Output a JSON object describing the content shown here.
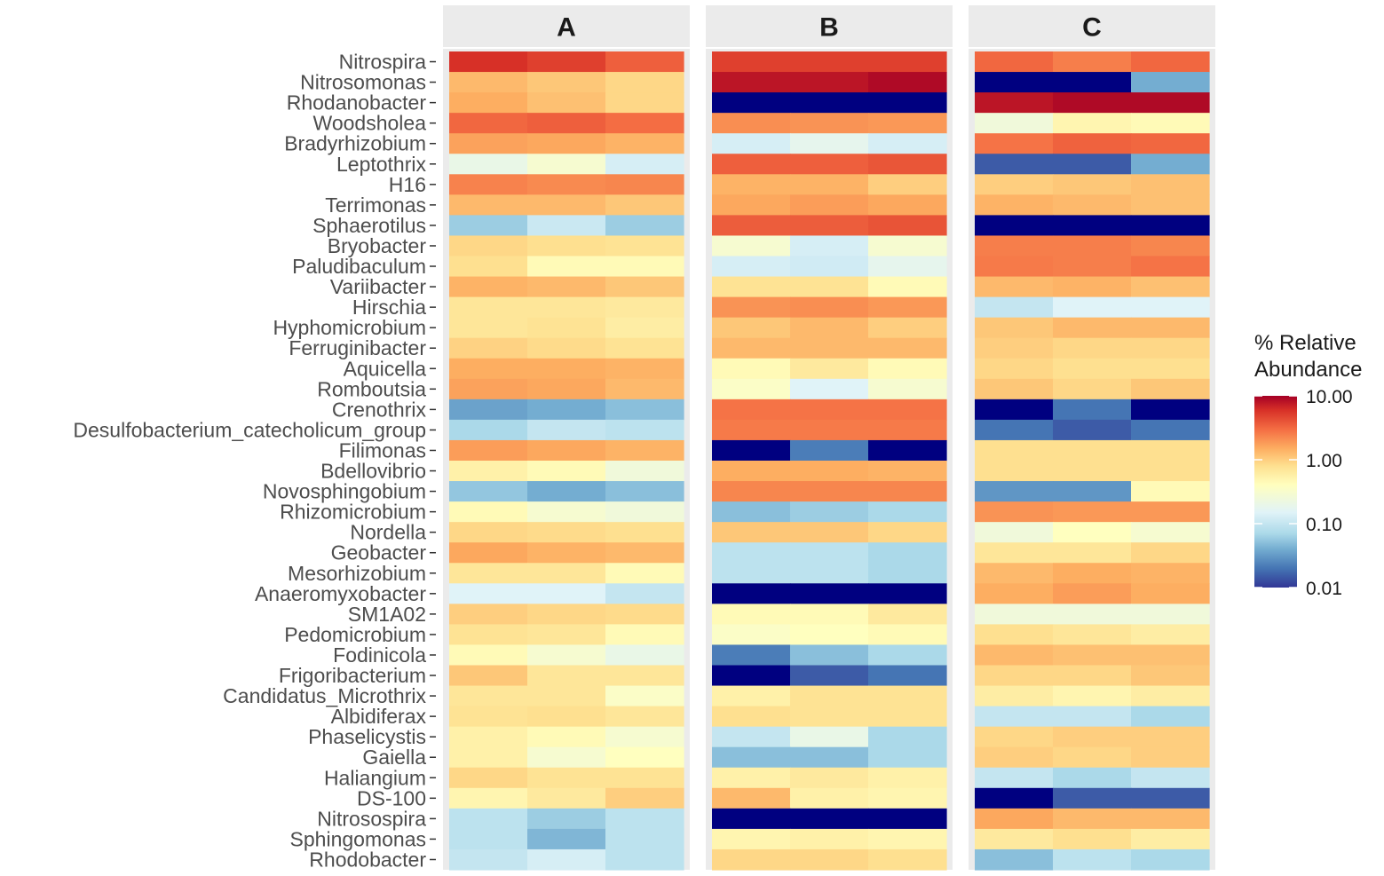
{
  "chart_data": {
    "type": "heatmap",
    "legend": {
      "title_lines": [
        "% Relative",
        "Abundance"
      ],
      "ticks": [
        "10.00",
        "1.00",
        "0.10",
        "0.01"
      ],
      "tick_values": [
        10,
        1,
        0.1,
        0.01
      ],
      "scale": "log10",
      "position": "right"
    },
    "color_stops": [
      {
        "value": 0.01,
        "color": "#313695"
      },
      {
        "value": 0.02,
        "color": "#4575b4"
      },
      {
        "value": 0.04,
        "color": "#74add1"
      },
      {
        "value": 0.07,
        "color": "#abd9e9"
      },
      {
        "value": 0.15,
        "color": "#e0f3f8"
      },
      {
        "value": 0.4,
        "color": "#ffffbf"
      },
      {
        "value": 0.8,
        "color": "#fee090"
      },
      {
        "value": 1.5,
        "color": "#fdae61"
      },
      {
        "value": 3.0,
        "color": "#f46d43"
      },
      {
        "value": 6.0,
        "color": "#d73027"
      },
      {
        "value": 10.0,
        "color": "#a50026"
      }
    ],
    "below_range_color": "#000080",
    "panels": [
      "A",
      "B",
      "C"
    ],
    "genera": [
      "Nitrospira",
      "Nitrosomonas",
      "Rhodanobacter",
      "Woodsholea",
      "Bradyrhizobium",
      "Leptothrix",
      "H16",
      "Terrimonas",
      "Sphaerotilus",
      "Bryobacter",
      "Paludibaculum",
      "Variibacter",
      "Hirschia",
      "Hyphomicrobium",
      "Ferruginibacter",
      "Aquicella",
      "Romboutsia",
      "Crenothrix",
      "Desulfobacterium_catecholicum_group",
      "Filimonas",
      "Bdellovibrio",
      "Novosphingobium",
      "Rhizomicrobium",
      "Nordella",
      "Geobacter",
      "Mesorhizobium",
      "Anaeromyxobacter",
      "SM1A02",
      "Pedomicrobium",
      "Fodinicola",
      "Frigoribacterium",
      "Candidatus_Microthrix",
      "Albidiferax",
      "Phaselicystis",
      "Gaiella",
      "Haliangium",
      "DS-100",
      "Nitrosospira",
      "Sphingomonas",
      "Rhodobacter"
    ],
    "values": {
      "A": [
        [
          6,
          5,
          3.5
        ],
        [
          1.3,
          1.1,
          0.9
        ],
        [
          1.5,
          1.2,
          0.9
        ],
        [
          3.2,
          3.5,
          3
        ],
        [
          1.7,
          1.6,
          1.4
        ],
        [
          0.2,
          0.3,
          0.13
        ],
        [
          2.4,
          2.2,
          2.3
        ],
        [
          1.3,
          1.3,
          1.1
        ],
        [
          0.06,
          0.11,
          0.06
        ],
        [
          0.9,
          0.8,
          0.75
        ],
        [
          0.8,
          0.45,
          0.45
        ],
        [
          1.4,
          1.3,
          1.1
        ],
        [
          0.7,
          0.7,
          0.65
        ],
        [
          0.7,
          0.75,
          0.6
        ],
        [
          0.95,
          0.85,
          0.75
        ],
        [
          1.5,
          1.5,
          1.4
        ],
        [
          1.7,
          1.6,
          1.3
        ],
        [
          0.035,
          0.04,
          0.05
        ],
        [
          0.07,
          0.1,
          0.09
        ],
        [
          1.8,
          1.6,
          1.4
        ],
        [
          0.55,
          0.45,
          0.25
        ],
        [
          0.055,
          0.04,
          0.05
        ],
        [
          0.45,
          0.3,
          0.25
        ],
        [
          0.9,
          0.85,
          0.8
        ],
        [
          1.6,
          1.4,
          1.3
        ],
        [
          0.7,
          0.7,
          0.45
        ],
        [
          0.15,
          0.15,
          0.1
        ],
        [
          1.0,
          0.9,
          0.85
        ],
        [
          0.75,
          0.7,
          0.45
        ],
        [
          0.45,
          0.3,
          0.2
        ],
        [
          1.1,
          0.7,
          0.7
        ],
        [
          0.7,
          0.7,
          0.35
        ],
        [
          0.75,
          0.8,
          0.7
        ],
        [
          0.55,
          0.45,
          0.3
        ],
        [
          0.55,
          0.3,
          0.4
        ],
        [
          0.9,
          0.75,
          0.75
        ],
        [
          0.5,
          0.65,
          1.0
        ],
        [
          0.09,
          0.06,
          0.09
        ],
        [
          0.09,
          0.045,
          0.09
        ],
        [
          0.1,
          0.13,
          0.09
        ]
      ],
      "B": [
        [
          5,
          5,
          5
        ],
        [
          8,
          8,
          9
        ],
        [
          0.004,
          0.004,
          0.004
        ],
        [
          2.1,
          2.0,
          1.9
        ],
        [
          0.13,
          0.18,
          0.13
        ],
        [
          3.5,
          3.5,
          3.9
        ],
        [
          1.4,
          1.4,
          1.0
        ],
        [
          1.6,
          1.8,
          1.6
        ],
        [
          3.6,
          3.6,
          4
        ],
        [
          0.3,
          0.13,
          0.3
        ],
        [
          0.13,
          0.12,
          0.18
        ],
        [
          0.75,
          0.75,
          0.45
        ],
        [
          2.0,
          2.1,
          1.9
        ],
        [
          1.1,
          1.3,
          1.0
        ],
        [
          1.3,
          1.3,
          1.3
        ],
        [
          0.45,
          0.65,
          0.45
        ],
        [
          0.35,
          0.15,
          0.3
        ],
        [
          2.8,
          2.8,
          2.8
        ],
        [
          2.6,
          2.6,
          2.6
        ],
        [
          0.004,
          0.022,
          0.004
        ],
        [
          1.5,
          1.5,
          1.4
        ],
        [
          2.3,
          2.3,
          2.3
        ],
        [
          0.05,
          0.06,
          0.07
        ],
        [
          1.1,
          1.1,
          0.9
        ],
        [
          0.09,
          0.09,
          0.07
        ],
        [
          0.09,
          0.09,
          0.07
        ],
        [
          0.004,
          0.004,
          0.004
        ],
        [
          0.45,
          0.45,
          0.65
        ],
        [
          0.35,
          0.4,
          0.45
        ],
        [
          0.022,
          0.05,
          0.07
        ],
        [
          0.004,
          0.015,
          0.02
        ],
        [
          0.55,
          0.75,
          0.75
        ],
        [
          0.8,
          0.75,
          0.75
        ],
        [
          0.1,
          0.2,
          0.07
        ],
        [
          0.05,
          0.05,
          0.07
        ],
        [
          0.55,
          0.65,
          0.55
        ],
        [
          1.3,
          0.55,
          0.5
        ],
        [
          0.004,
          0.004,
          0.004
        ],
        [
          0.5,
          0.55,
          0.5
        ],
        [
          0.9,
          0.9,
          0.8
        ]
      ],
      "C": [
        [
          3.2,
          2.5,
          3.2
        ],
        [
          0.004,
          0.004,
          0.04
        ],
        [
          8,
          9,
          9
        ],
        [
          0.25,
          0.5,
          0.45
        ],
        [
          2.8,
          3.4,
          3.2
        ],
        [
          0.015,
          0.015,
          0.04
        ],
        [
          1.0,
          1.1,
          1.2
        ],
        [
          1.4,
          1.3,
          1.2
        ],
        [
          0.004,
          0.004,
          0.004
        ],
        [
          2.5,
          2.5,
          2.3
        ],
        [
          2.6,
          2.5,
          2.8
        ],
        [
          1.3,
          1.4,
          1.2
        ],
        [
          0.1,
          0.15,
          0.15
        ],
        [
          1.1,
          1.3,
          1.3
        ],
        [
          1.0,
          0.9,
          0.9
        ],
        [
          0.9,
          0.8,
          0.8
        ],
        [
          1.1,
          0.9,
          1.1
        ],
        [
          0.004,
          0.02,
          0.004
        ],
        [
          0.02,
          0.015,
          0.02
        ],
        [
          0.8,
          0.8,
          0.8
        ],
        [
          0.8,
          0.8,
          0.8
        ],
        [
          0.03,
          0.03,
          0.45
        ],
        [
          2.0,
          1.9,
          1.9
        ],
        [
          0.25,
          0.4,
          0.3
        ],
        [
          0.7,
          0.7,
          0.9
        ],
        [
          1.3,
          1.5,
          1.4
        ],
        [
          1.5,
          1.8,
          1.5
        ],
        [
          0.25,
          0.25,
          0.25
        ],
        [
          0.8,
          0.7,
          0.6
        ],
        [
          1.3,
          1.2,
          1.2
        ],
        [
          0.9,
          0.9,
          1.1
        ],
        [
          0.6,
          0.5,
          0.6
        ],
        [
          0.1,
          0.1,
          0.07
        ],
        [
          0.9,
          1.0,
          1.0
        ],
        [
          1.0,
          0.9,
          1.0
        ],
        [
          0.1,
          0.07,
          0.1
        ],
        [
          0.004,
          0.015,
          0.015
        ],
        [
          1.6,
          1.3,
          1.3
        ],
        [
          0.65,
          0.8,
          0.6
        ],
        [
          0.05,
          0.09,
          0.07
        ]
      ]
    }
  }
}
